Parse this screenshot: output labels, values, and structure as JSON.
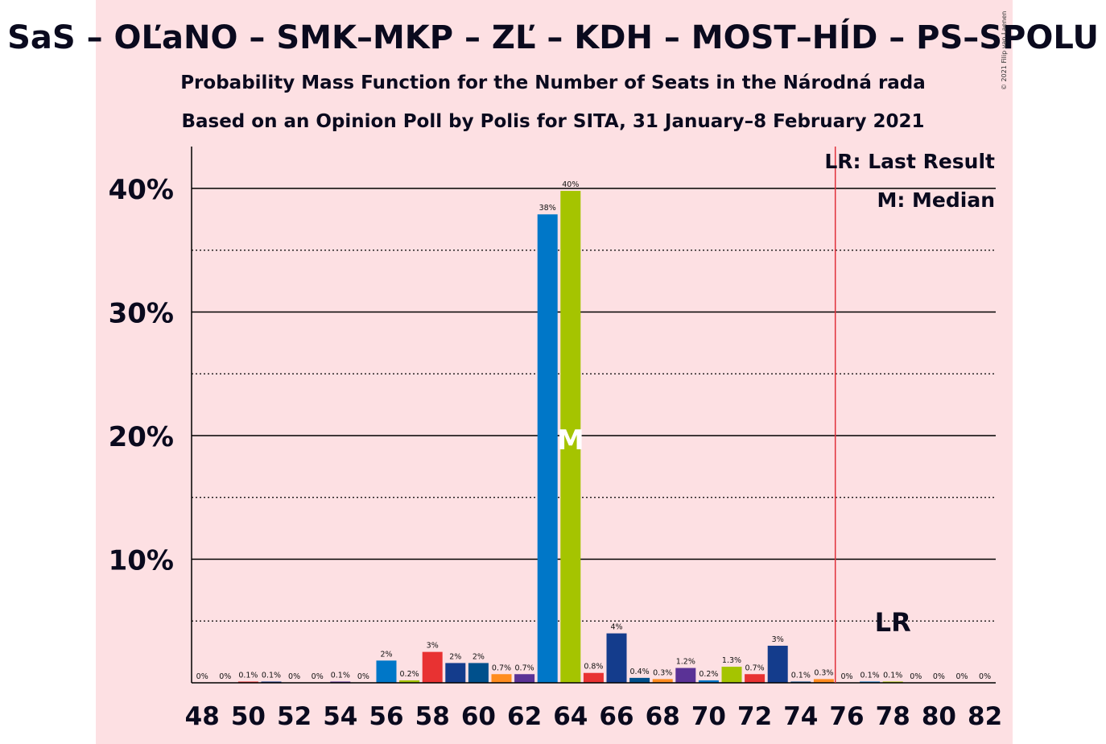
{
  "title": "SaS – OĽaNO – SMK–MKP – ZĽ – KDH – MOST–HÍD – PS–SPOLU",
  "subtitle_1": "Probability Mass Function for the Number of Seats in the Národná rada",
  "subtitle_2": "Based on an Opinion Poll by Polis for SITA, 31 January–8 February 2021",
  "copyright": "© 2021 Filip van Laenen",
  "legend": {
    "last_result": "LR: Last Result",
    "median": "M: Median"
  },
  "markers": {
    "median_label": "M",
    "last_result_label": "LR",
    "median_seat": 64,
    "last_result_seat": 78,
    "majority_line_seat": 75.5
  },
  "colors": {
    "band": "#fde0e3",
    "majority_line": "#e0303a"
  },
  "chart_data": {
    "type": "bar",
    "xlim": [
      48,
      82
    ],
    "ylim": [
      0,
      43.5
    ],
    "x_ticks": [
      48,
      50,
      52,
      54,
      56,
      58,
      60,
      62,
      64,
      66,
      68,
      70,
      72,
      74,
      76,
      78,
      80,
      82
    ],
    "x_tick_labels": [
      "48",
      "50",
      "52",
      "54",
      "56",
      "58",
      "60",
      "62",
      "64",
      "66",
      "68",
      "70",
      "72",
      "74",
      "76",
      "78",
      "80",
      "82"
    ],
    "y_ticks": [
      10,
      20,
      30,
      40
    ],
    "y_tick_labels": [
      "10%",
      "20%",
      "30%",
      "40%"
    ],
    "y_minor": [
      5,
      15,
      25,
      35
    ],
    "bars": [
      {
        "x": 48,
        "value": 0,
        "label": "0%",
        "color": "#0077c8"
      },
      {
        "x": 49,
        "value": 0,
        "label": "0%",
        "color": "#a5c400"
      },
      {
        "x": 50,
        "value": 0.1,
        "label": "0.1%",
        "color": "#e83232"
      },
      {
        "x": 51,
        "value": 0.1,
        "label": "0.1%",
        "color": "#143c8c"
      },
      {
        "x": 52,
        "value": 0,
        "label": "0%",
        "color": "#00508c"
      },
      {
        "x": 53,
        "value": 0,
        "label": "0%",
        "color": "#ff8c1e"
      },
      {
        "x": 54,
        "value": 0.1,
        "label": "0.1%",
        "color": "#5a3296"
      },
      {
        "x": 55,
        "value": 0,
        "label": "0%",
        "color": "#0077c8"
      },
      {
        "x": 56,
        "value": 1.8,
        "label": "2%",
        "color": "#0077c8"
      },
      {
        "x": 57,
        "value": 0.2,
        "label": "0.2%",
        "color": "#a5c400"
      },
      {
        "x": 58,
        "value": 2.5,
        "label": "3%",
        "color": "#e83232"
      },
      {
        "x": 59,
        "value": 1.6,
        "label": "2%",
        "color": "#143c8c"
      },
      {
        "x": 60,
        "value": 1.6,
        "label": "2%",
        "color": "#00508c"
      },
      {
        "x": 61,
        "value": 0.7,
        "label": "0.7%",
        "color": "#ff8c1e"
      },
      {
        "x": 62,
        "value": 0.7,
        "label": "0.7%",
        "color": "#5a3296"
      },
      {
        "x": 63,
        "value": 37.9,
        "label": "38%",
        "color": "#0077c8"
      },
      {
        "x": 64,
        "value": 39.8,
        "label": "40%",
        "color": "#a5c400"
      },
      {
        "x": 65,
        "value": 0.8,
        "label": "0.8%",
        "color": "#e83232"
      },
      {
        "x": 66,
        "value": 4.0,
        "label": "4%",
        "color": "#143c8c"
      },
      {
        "x": 67,
        "value": 0.4,
        "label": "0.4%",
        "color": "#00508c"
      },
      {
        "x": 68,
        "value": 0.3,
        "label": "0.3%",
        "color": "#ff8c1e"
      },
      {
        "x": 69,
        "value": 1.2,
        "label": "1.2%",
        "color": "#5a3296"
      },
      {
        "x": 70,
        "value": 0.2,
        "label": "0.2%",
        "color": "#0077c8"
      },
      {
        "x": 71,
        "value": 1.3,
        "label": "1.3%",
        "color": "#a5c400"
      },
      {
        "x": 72,
        "value": 0.7,
        "label": "0.7%",
        "color": "#e83232"
      },
      {
        "x": 73,
        "value": 3.0,
        "label": "3%",
        "color": "#143c8c"
      },
      {
        "x": 74,
        "value": 0.1,
        "label": "0.1%",
        "color": "#00508c"
      },
      {
        "x": 75,
        "value": 0.3,
        "label": "0.3%",
        "color": "#ff8c1e"
      },
      {
        "x": 76,
        "value": 0,
        "label": "0%",
        "color": "#5a3296"
      },
      {
        "x": 77,
        "value": 0.1,
        "label": "0.1%",
        "color": "#0077c8"
      },
      {
        "x": 78,
        "value": 0.1,
        "label": "0.1%",
        "color": "#a5c400"
      },
      {
        "x": 79,
        "value": 0,
        "label": "0%",
        "color": "#e83232"
      },
      {
        "x": 80,
        "value": 0,
        "label": "0%",
        "color": "#143c8c"
      },
      {
        "x": 81,
        "value": 0,
        "label": "0%",
        "color": "#00508c"
      },
      {
        "x": 82,
        "value": 0,
        "label": "0%",
        "color": "#ff8c1e"
      }
    ]
  }
}
